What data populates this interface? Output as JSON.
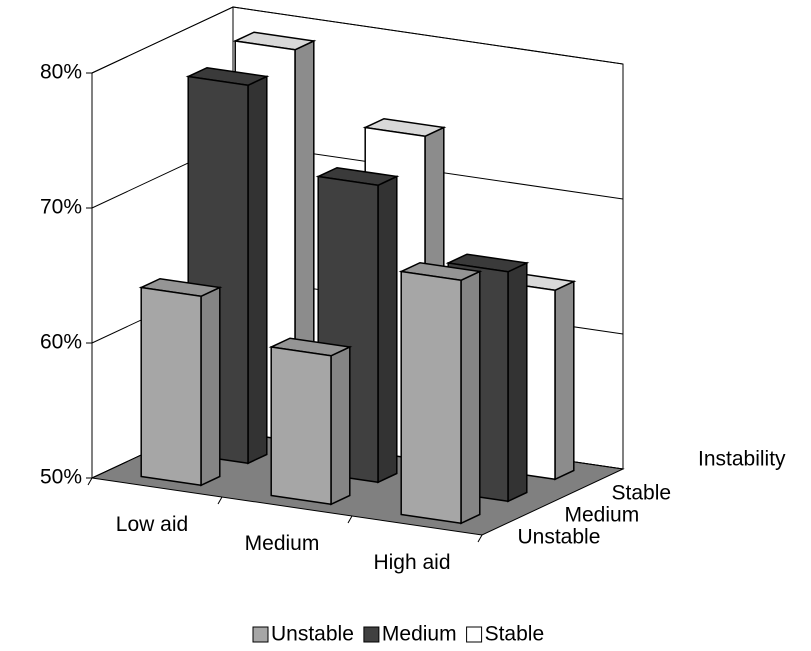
{
  "chart_data": {
    "type": "bar3d",
    "categories": [
      "Low aid",
      "Medium",
      "High aid"
    ],
    "depth_categories": [
      "Unstable",
      "Medium",
      "Stable"
    ],
    "depth_axis_title": "Instability",
    "series": [
      {
        "name": "Unstable",
        "color": "#a6a6a6",
        "values": [
          64,
          61,
          68
        ]
      },
      {
        "name": "Medium",
        "color": "#404040",
        "values": [
          78,
          72,
          67
        ]
      },
      {
        "name": "Stable",
        "color": "#ffffff",
        "values": [
          79,
          74,
          64
        ]
      }
    ],
    "ylim": [
      50,
      80
    ],
    "yticks": [
      {
        "value": 50,
        "label": "50%"
      },
      {
        "value": 60,
        "label": "60%"
      },
      {
        "value": 70,
        "label": "70%"
      },
      {
        "value": 80,
        "label": "80%"
      }
    ],
    "grid": true
  }
}
